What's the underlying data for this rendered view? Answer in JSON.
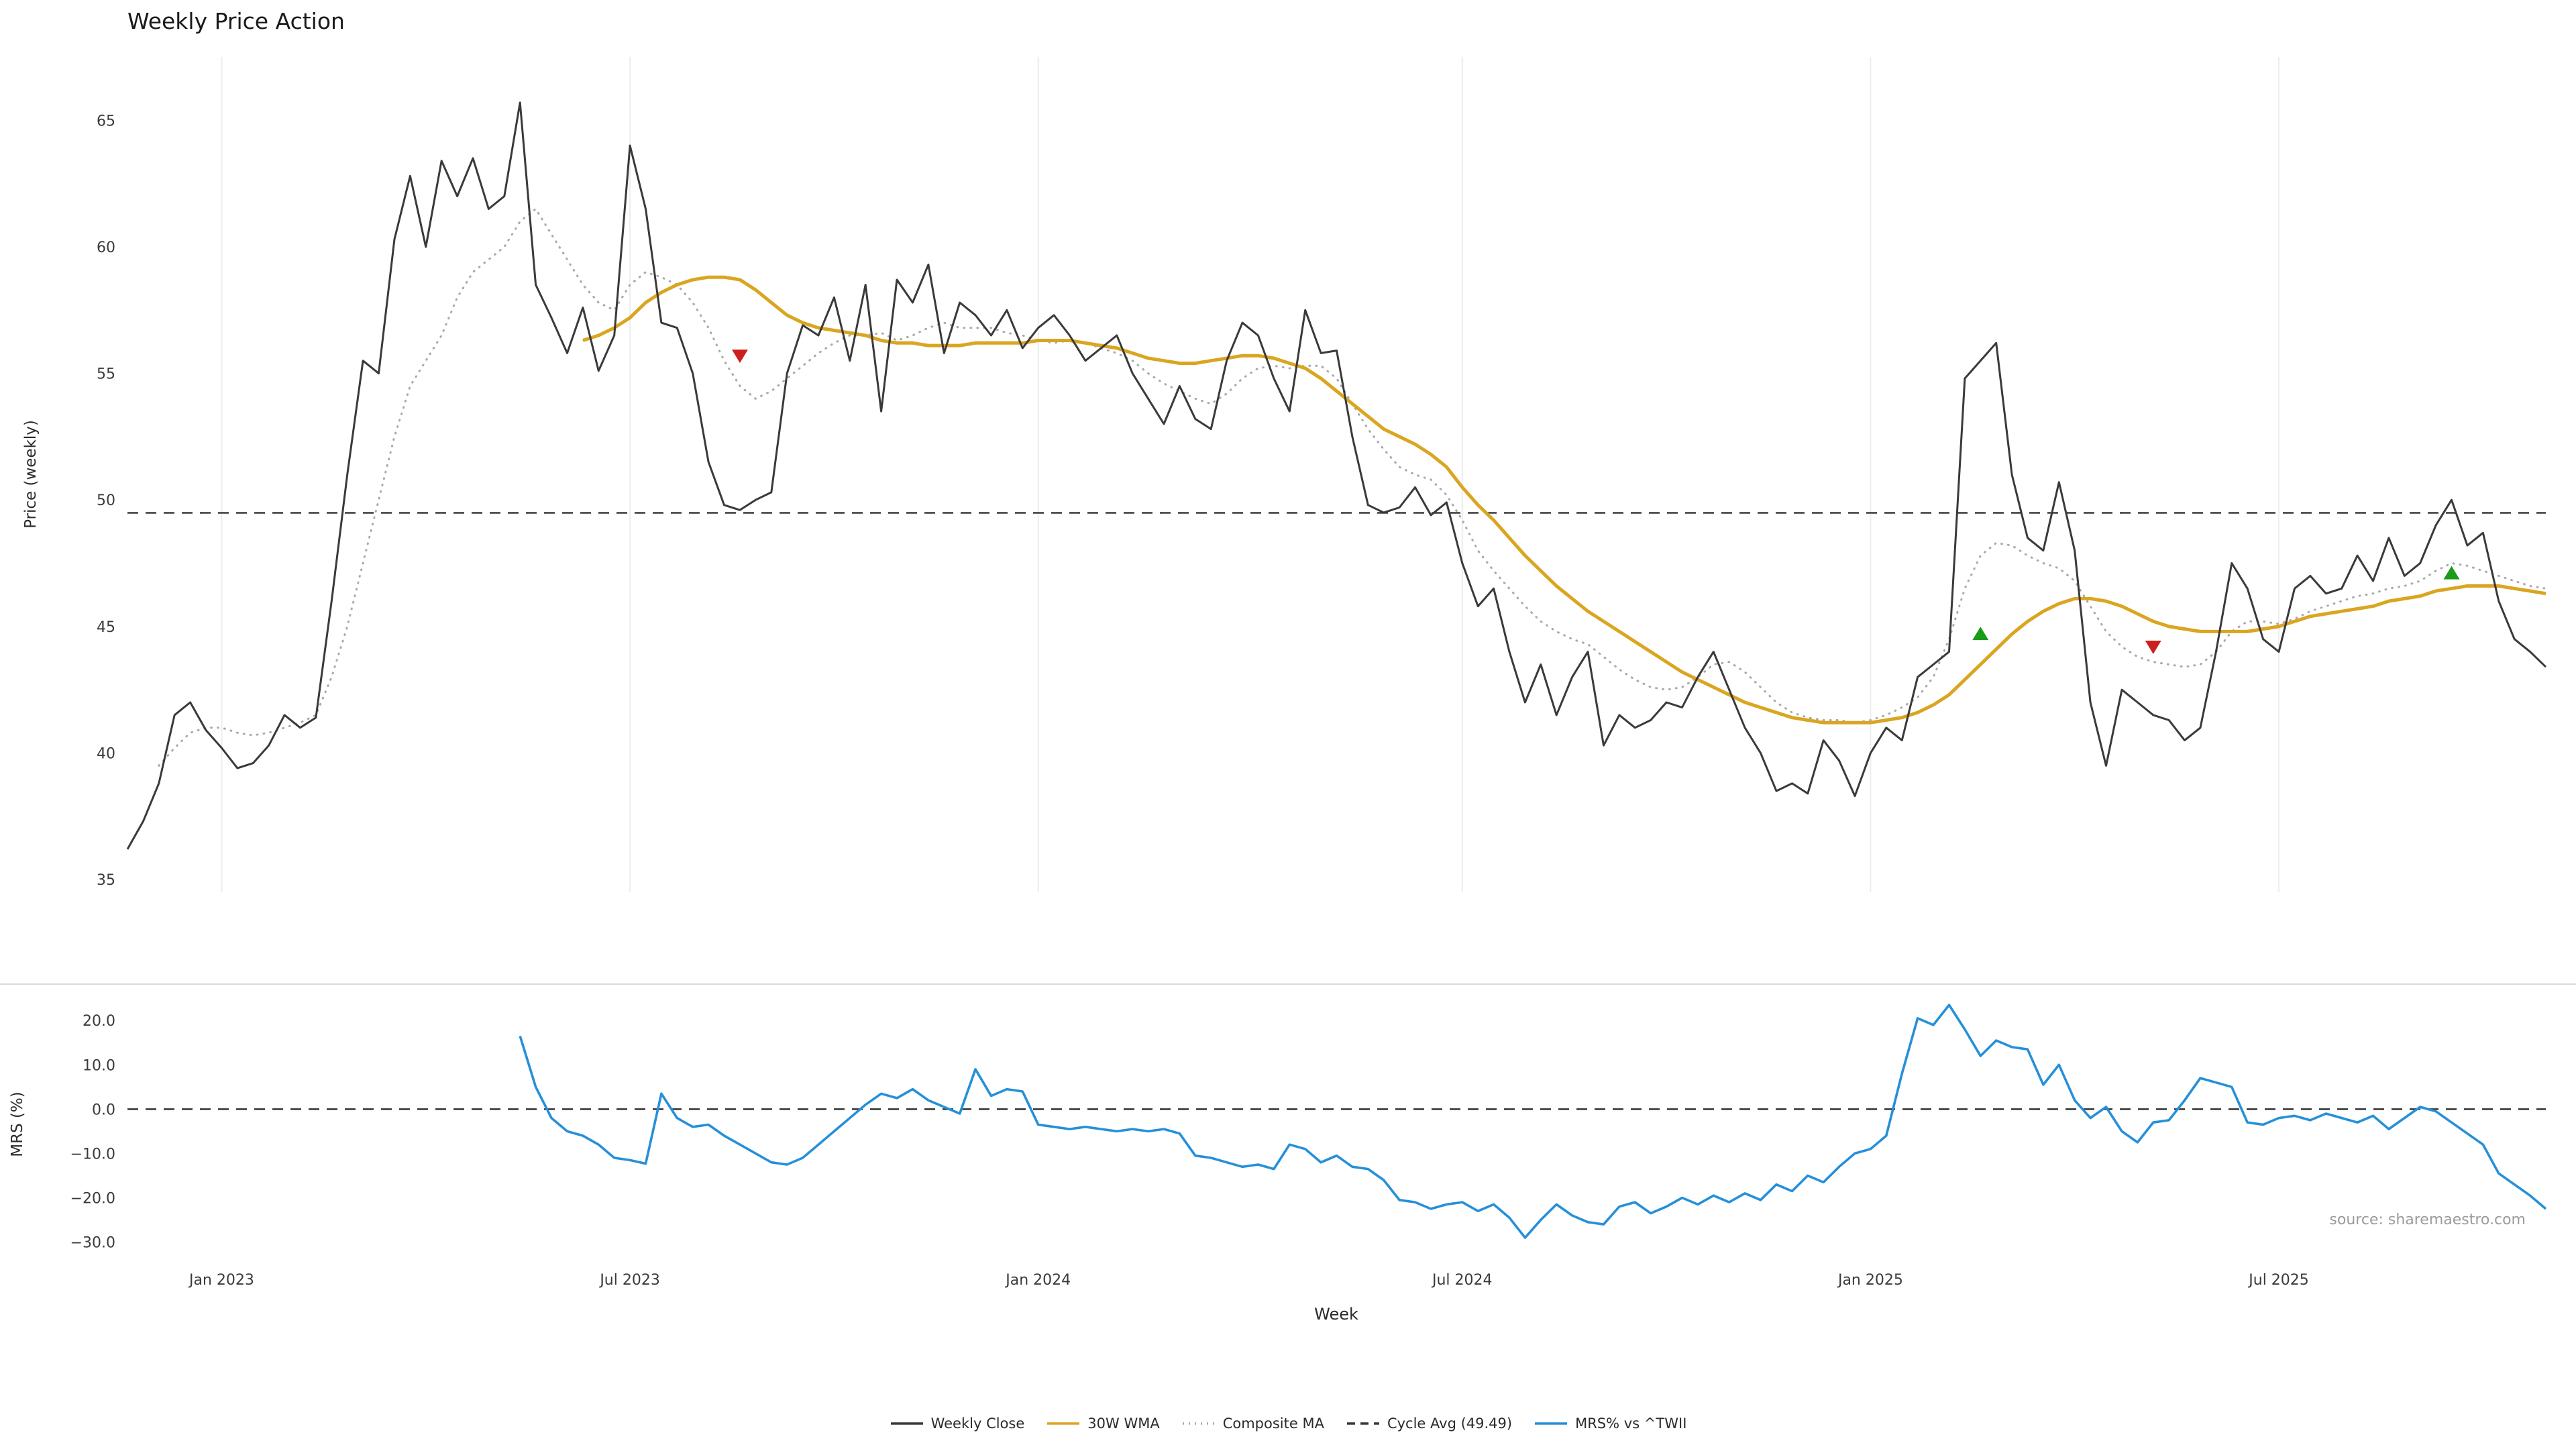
{
  "title": "Weekly Price Action",
  "source": "source: sharemaestro.com",
  "xlabel": "Week",
  "colors": {
    "close": "#3a3a3a",
    "wma": "#DAA520",
    "composite": "#a9a9a9",
    "cycle": "#3a3a3a",
    "mrs": "#2590d9",
    "buy": "#1a9c1a",
    "sell": "#cc2020",
    "grid": "#ededed",
    "tick": "#3a3a3a",
    "spine": "#d9d9d9"
  },
  "legend": [
    {
      "label": "Weekly Close",
      "color": "#3a3a3a",
      "dash": "solid"
    },
    {
      "label": "30W WMA",
      "color": "#DAA520",
      "dash": "solid"
    },
    {
      "label": "Composite MA",
      "color": "#a9a9a9",
      "dash": "dotted"
    },
    {
      "label": "Cycle Avg (49.49)",
      "color": "#3a3a3a",
      "dash": "dashed"
    },
    {
      "label": "MRS% vs ^TWII",
      "color": "#2590d9",
      "dash": "solid"
    }
  ],
  "chart_data": [
    {
      "type": "line",
      "panel": "price",
      "title": "Weekly Price Action",
      "ylabel": "Price (weekly)",
      "ylim": [
        34.5,
        67.5
      ],
      "yticks": [
        35,
        40,
        45,
        50,
        55,
        60,
        65
      ],
      "x_unit": "week_index",
      "x_range": [
        0,
        154
      ],
      "grid": "vertical-only",
      "xticks": [
        {
          "week": 6,
          "label": "Jan 2023"
        },
        {
          "week": 32,
          "label": "Jul 2023"
        },
        {
          "week": 58,
          "label": "Jan 2024"
        },
        {
          "week": 85,
          "label": "Jul 2024"
        },
        {
          "week": 111,
          "label": "Jan 2025"
        },
        {
          "week": 137,
          "label": "Jul 2025"
        }
      ],
      "cycle_avg": 49.49,
      "series": [
        {
          "name": "Weekly Close",
          "start_week": 0,
          "values": [
            36.2,
            37.3,
            38.8,
            41.5,
            42.0,
            40.9,
            40.2,
            39.4,
            39.6,
            40.3,
            41.5,
            41.0,
            41.4,
            46.0,
            51.0,
            55.5,
            55.0,
            60.3,
            62.8,
            60.0,
            63.4,
            62.0,
            63.5,
            61.5,
            62.0,
            65.7,
            58.5,
            57.2,
            55.8,
            57.6,
            55.1,
            56.5,
            64.0,
            61.5,
            57.0,
            56.8,
            55.0,
            51.5,
            49.8,
            49.6,
            50.0,
            50.3,
            55.0,
            56.9,
            56.5,
            58.0,
            55.5,
            58.5,
            53.5,
            58.7,
            57.8,
            59.3,
            55.8,
            57.8,
            57.3,
            56.5,
            57.5,
            56.0,
            56.8,
            57.3,
            56.5,
            55.5,
            56.0,
            56.5,
            55.0,
            54.0,
            53.0,
            54.5,
            53.2,
            52.8,
            55.5,
            57.0,
            56.5,
            54.8,
            53.5,
            57.5,
            55.8,
            55.9,
            52.5,
            49.8,
            49.5,
            49.7,
            50.5,
            49.4,
            49.9,
            47.5,
            45.8,
            46.5,
            44.0,
            42.0,
            43.5,
            41.5,
            43.0,
            44.0,
            40.3,
            41.5,
            41.0,
            41.3,
            42.0,
            41.8,
            43.0,
            44.0,
            42.5,
            41.0,
            40.0,
            38.5,
            38.8,
            38.4,
            40.5,
            39.7,
            38.3,
            40.0,
            41.0,
            40.5,
            43.0,
            43.5,
            44.0,
            54.8,
            55.5,
            56.2,
            51.0,
            48.5,
            48.0,
            50.7,
            48.0,
            42.0,
            39.5,
            42.5,
            42.0,
            41.5,
            41.3,
            40.5,
            41.0,
            44.0,
            47.5,
            46.5,
            44.5,
            44.0,
            46.5,
            47.0,
            46.3,
            46.5,
            47.8,
            46.8,
            48.5,
            47.0,
            47.5,
            49.0,
            50.0,
            48.2,
            48.7,
            46.0,
            44.5,
            44.0,
            43.4
          ]
        },
        {
          "name": "30W WMA",
          "start_week": 29,
          "values": [
            56.3,
            56.5,
            56.8,
            57.2,
            57.8,
            58.2,
            58.5,
            58.7,
            58.8,
            58.8,
            58.7,
            58.3,
            57.8,
            57.3,
            57.0,
            56.8,
            56.7,
            56.6,
            56.5,
            56.3,
            56.2,
            56.2,
            56.1,
            56.1,
            56.1,
            56.2,
            56.2,
            56.2,
            56.2,
            56.3,
            56.3,
            56.3,
            56.2,
            56.1,
            56.0,
            55.8,
            55.6,
            55.5,
            55.4,
            55.4,
            55.5,
            55.6,
            55.7,
            55.7,
            55.6,
            55.4,
            55.2,
            54.8,
            54.3,
            53.8,
            53.3,
            52.8,
            52.5,
            52.2,
            51.8,
            51.3,
            50.5,
            49.8,
            49.2,
            48.5,
            47.8,
            47.2,
            46.6,
            46.1,
            45.6,
            45.2,
            44.8,
            44.4,
            44.0,
            43.6,
            43.2,
            42.9,
            42.6,
            42.3,
            42.0,
            41.8,
            41.6,
            41.4,
            41.3,
            41.2,
            41.2,
            41.2,
            41.2,
            41.3,
            41.4,
            41.6,
            41.9,
            42.3,
            42.9,
            43.5,
            44.1,
            44.7,
            45.2,
            45.6,
            45.9,
            46.1,
            46.1,
            46.0,
            45.8,
            45.5,
            45.2,
            45.0,
            44.9,
            44.8,
            44.8,
            44.8,
            44.8,
            44.9,
            45.0,
            45.2,
            45.4,
            45.5,
            45.6,
            45.7,
            45.8,
            46.0,
            46.1,
            46.2,
            46.4,
            46.5,
            46.6,
            46.6,
            46.6,
            46.5,
            46.4,
            46.3
          ]
        },
        {
          "name": "Composite MA",
          "start_week": 2,
          "values": [
            39.5,
            40.2,
            40.8,
            41.0,
            41.0,
            40.8,
            40.7,
            40.8,
            41.0,
            41.2,
            41.5,
            43.0,
            45.0,
            47.5,
            50.0,
            52.5,
            54.5,
            55.5,
            56.5,
            58.0,
            59.0,
            59.5,
            60.0,
            61.0,
            61.5,
            60.5,
            59.5,
            58.5,
            57.8,
            57.5,
            58.5,
            59.0,
            58.8,
            58.5,
            57.8,
            56.8,
            55.5,
            54.5,
            54.0,
            54.3,
            54.8,
            55.3,
            55.8,
            56.2,
            56.5,
            56.5,
            56.6,
            56.3,
            56.5,
            56.8,
            57.0,
            56.8,
            56.8,
            56.8,
            56.6,
            56.5,
            56.3,
            56.2,
            56.3,
            56.2,
            56.0,
            55.8,
            55.5,
            55.0,
            54.6,
            54.3,
            54.0,
            53.8,
            54.2,
            54.8,
            55.2,
            55.3,
            55.2,
            55.3,
            55.3,
            54.8,
            53.8,
            52.8,
            52.0,
            51.3,
            51.0,
            50.8,
            50.2,
            49.2,
            48.0,
            47.2,
            46.5,
            45.8,
            45.2,
            44.8,
            44.5,
            44.3,
            43.8,
            43.3,
            42.9,
            42.6,
            42.5,
            42.6,
            43.0,
            43.5,
            43.6,
            43.2,
            42.6,
            42.0,
            41.6,
            41.4,
            41.3,
            41.3,
            41.2,
            41.3,
            41.5,
            41.8,
            42.2,
            43.0,
            44.5,
            46.5,
            47.8,
            48.3,
            48.2,
            47.8,
            47.5,
            47.3,
            46.8,
            45.8,
            44.8,
            44.2,
            43.8,
            43.6,
            43.5,
            43.4,
            43.5,
            44.0,
            44.8,
            45.2,
            45.2,
            45.1,
            45.3,
            45.6,
            45.8,
            46.0,
            46.2,
            46.3,
            46.5,
            46.6,
            46.8,
            47.2,
            47.5,
            47.4,
            47.2,
            47.0,
            46.8,
            46.6,
            46.5
          ]
        }
      ],
      "markers": [
        {
          "week": 39,
          "value": 55.7,
          "type": "sell"
        },
        {
          "week": 118,
          "value": 44.7,
          "type": "buy"
        },
        {
          "week": 129,
          "value": 44.2,
          "type": "sell"
        },
        {
          "week": 148,
          "value": 47.1,
          "type": "buy"
        }
      ]
    },
    {
      "type": "line",
      "panel": "mrs",
      "ylabel": "MRS (%)",
      "xlabel": "Week",
      "ylim": [
        -34,
        27
      ],
      "yticks": [
        -30,
        -20,
        -10,
        0,
        10,
        20
      ],
      "ytick_labels": [
        "−30.0",
        "−20.0",
        "−10.0",
        "0.0",
        "10.0",
        "20.0"
      ],
      "zero_line": 0,
      "series": [
        {
          "name": "MRS% vs ^TWII",
          "start_week": 25,
          "values": [
            16.5,
            5.0,
            -2.0,
            -5.0,
            -6.0,
            -8.0,
            -11.0,
            -11.5,
            -12.3,
            3.5,
            -2.0,
            -4.0,
            -3.5,
            -6.0,
            -8.0,
            -10.0,
            -12.0,
            -12.5,
            -11.0,
            -8.0,
            -5.0,
            -2.0,
            1.0,
            3.5,
            2.5,
            4.5,
            2.0,
            0.5,
            -1.0,
            9.0,
            3.0,
            4.5,
            4.0,
            -3.5,
            -4.0,
            -4.5,
            -4.0,
            -4.5,
            -5.0,
            -4.5,
            -5.0,
            -4.5,
            -5.5,
            -10.5,
            -11.0,
            -12.0,
            -13.0,
            -12.5,
            -13.5,
            -8.0,
            -9.0,
            -12.0,
            -10.5,
            -13.0,
            -13.5,
            -16.0,
            -20.5,
            -21.0,
            -22.5,
            -21.5,
            -21.0,
            -23.0,
            -21.5,
            -24.5,
            -29.0,
            -25.0,
            -21.5,
            -24.0,
            -25.5,
            -26.0,
            -22.0,
            -21.0,
            -23.5,
            -22.0,
            -20.0,
            -21.5,
            -19.5,
            -21.0,
            -19.0,
            -20.5,
            -17.0,
            -18.5,
            -15.0,
            -16.5,
            -13.0,
            -10.0,
            -9.0,
            -6.0,
            8.0,
            20.5,
            19.0,
            23.5,
            18.0,
            12.0,
            15.5,
            14.0,
            13.5,
            5.5,
            10.0,
            2.0,
            -2.0,
            0.5,
            -5.0,
            -7.5,
            -3.0,
            -2.5,
            2.0,
            7.0,
            6.0,
            5.0,
            -3.0,
            -3.5,
            -2.0,
            -1.5,
            -2.5,
            -1.0,
            -2.0,
            -3.0,
            -1.5,
            -4.5,
            -2.0,
            0.5,
            -0.5,
            -3.0,
            -5.5,
            -8.0,
            -14.5,
            -17.0,
            -19.5,
            -22.5
          ]
        }
      ]
    }
  ]
}
